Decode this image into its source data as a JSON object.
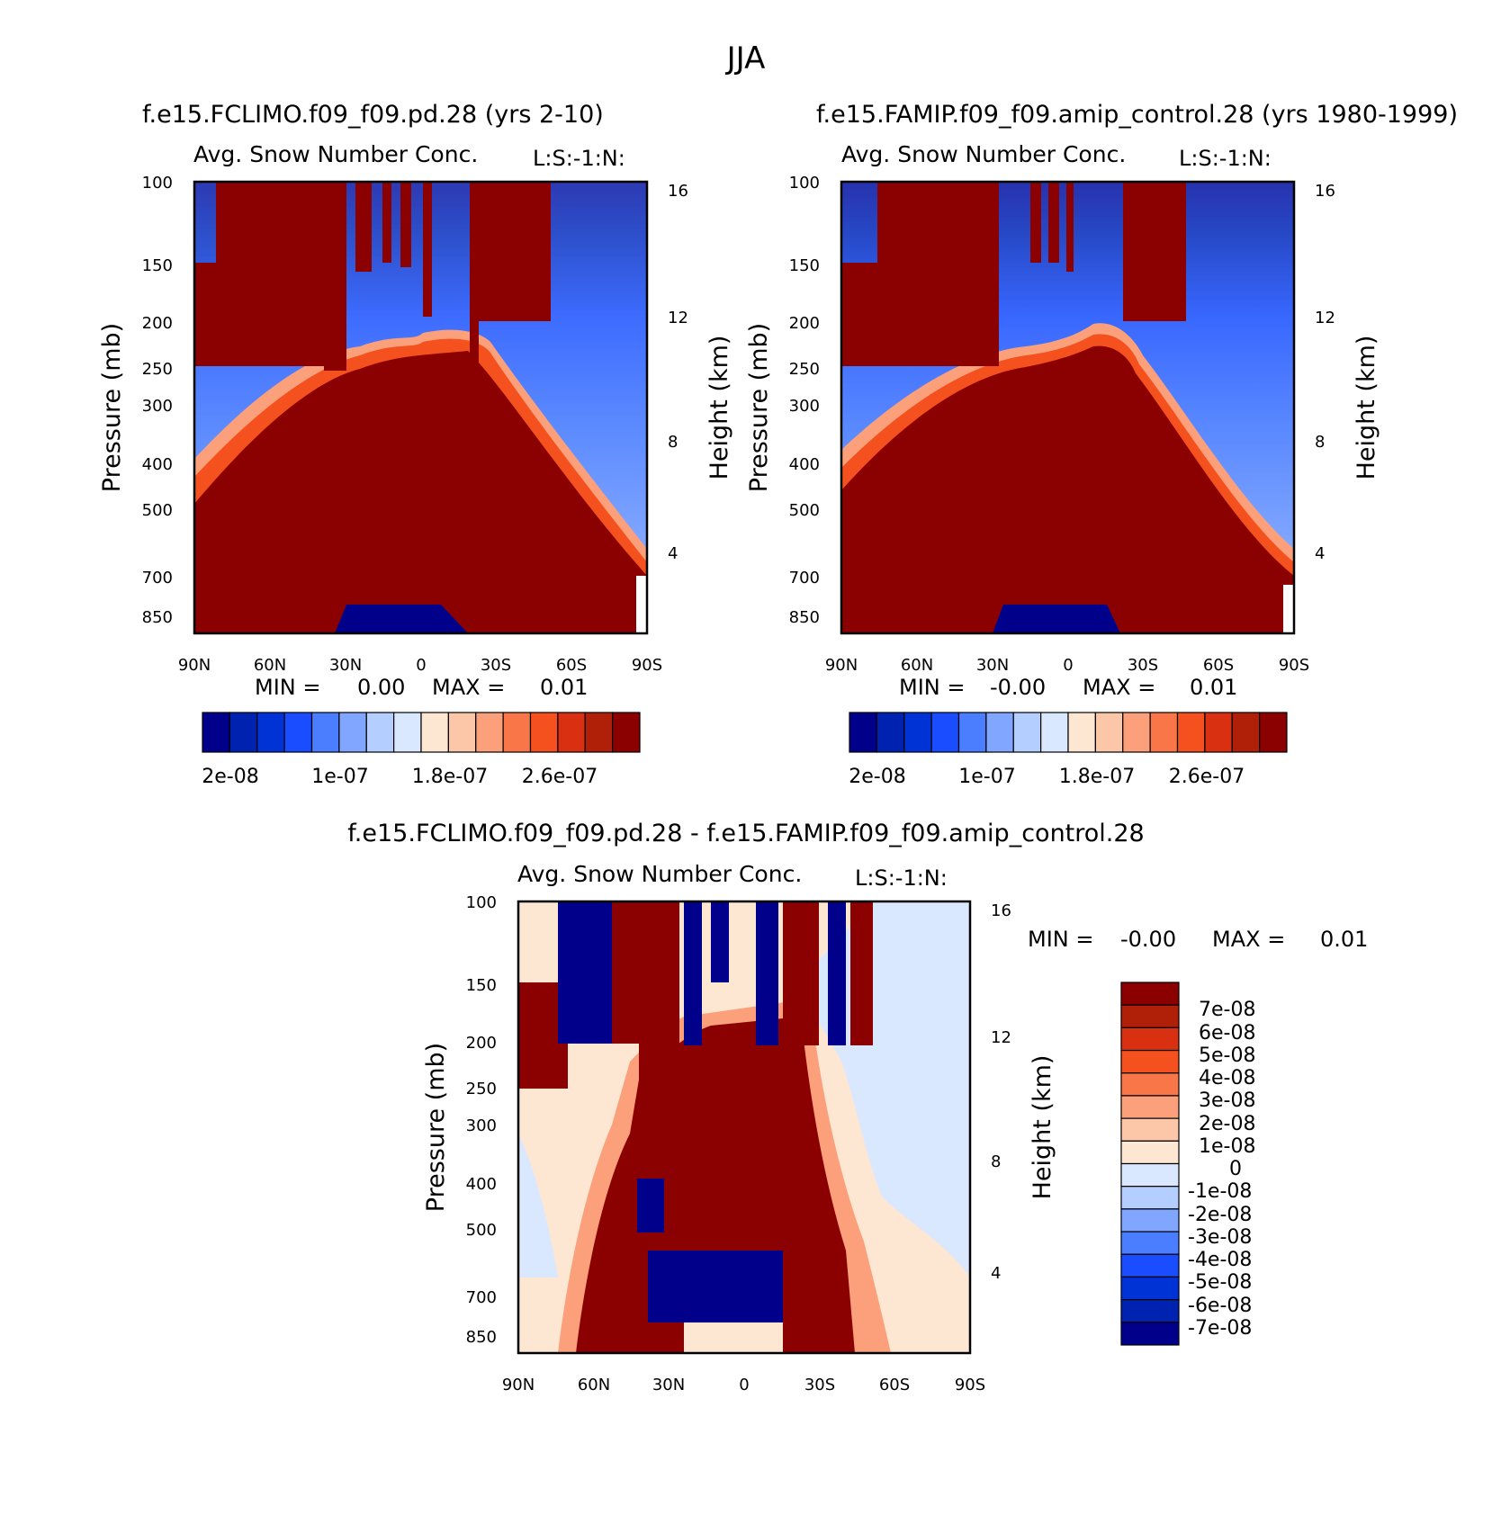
{
  "page_title": "JJA",
  "colors": {
    "abs_palette": [
      "#00008b",
      "#0022b0",
      "#0033d6",
      "#1a4dff",
      "#4a7dff",
      "#80a6ff",
      "#b3ceff",
      "#d9e8ff",
      "#fde6d2",
      "#fcc6a8",
      "#fba07a",
      "#f97648",
      "#f4511e",
      "#d83010",
      "#b01f08",
      "#8b0000"
    ],
    "diff_palette": [
      "#00008b",
      "#0022b0",
      "#0033d6",
      "#1a4dff",
      "#4a7dff",
      "#80a6ff",
      "#b3ceff",
      "#d9e8ff",
      "#fde6d2",
      "#fcc6a8",
      "#fba07a",
      "#f97648",
      "#f4511e",
      "#d83010",
      "#b01f08",
      "#8b0000"
    ]
  },
  "chart_data": [
    {
      "type": "heatmap",
      "panel": "top-left",
      "title": "f.e15.FCLIMO.f09_f09.pd.28 (yrs 2-10)",
      "subtitle": "Avg. Snow Number Conc.",
      "corner_label": "L:S:-1:N:",
      "xlabel": "",
      "ylabel": "Pressure (mb)",
      "y2label": "Height (km)",
      "xticks": [
        "90N",
        "60N",
        "30N",
        "0",
        "30S",
        "60S",
        "90S"
      ],
      "yticks": [
        "100",
        "150",
        "200",
        "250",
        "300",
        "400",
        "500",
        "700",
        "850"
      ],
      "y2ticks": [
        "16",
        "12",
        "8",
        "4"
      ],
      "min_label": "MIN =",
      "min_value": "0.00",
      "max_label": "MAX =",
      "max_value": "0.01",
      "colorbar_labels": [
        "2e-08",
        "1e-07",
        "1.8e-07",
        "2.6e-07"
      ]
    },
    {
      "type": "heatmap",
      "panel": "top-right",
      "title": "f.e15.FAMIP.f09_f09.amip_control.28 (yrs 1980-1999)",
      "subtitle": "Avg. Snow Number Conc.",
      "corner_label": "L:S:-1:N:",
      "xlabel": "",
      "ylabel": "Pressure (mb)",
      "y2label": "Height (km)",
      "xticks": [
        "90N",
        "60N",
        "30N",
        "0",
        "30S",
        "60S",
        "90S"
      ],
      "yticks": [
        "100",
        "150",
        "200",
        "250",
        "300",
        "400",
        "500",
        "700",
        "850"
      ],
      "y2ticks": [
        "16",
        "12",
        "8",
        "4"
      ],
      "min_label": "MIN =",
      "min_value": "-0.00",
      "max_label": "MAX =",
      "max_value": "0.01",
      "colorbar_labels": [
        "2e-08",
        "1e-07",
        "1.8e-07",
        "2.6e-07"
      ]
    },
    {
      "type": "heatmap",
      "panel": "bottom",
      "title": "f.e15.FCLIMO.f09_f09.pd.28 - f.e15.FAMIP.f09_f09.amip_control.28",
      "subtitle": "Avg. Snow Number Conc.",
      "corner_label": "L:S:-1:N:",
      "xlabel": "",
      "ylabel": "Pressure (mb)",
      "y2label": "Height (km)",
      "xticks": [
        "90N",
        "60N",
        "30N",
        "0",
        "30S",
        "60S",
        "90S"
      ],
      "yticks": [
        "100",
        "150",
        "200",
        "250",
        "300",
        "400",
        "500",
        "700",
        "850"
      ],
      "y2ticks": [
        "16",
        "12",
        "8",
        "4"
      ],
      "min_label": "MIN =",
      "min_value": "-0.00",
      "max_label": "MAX =",
      "max_value": "0.01",
      "colorbar_labels": [
        "7e-08",
        "6e-08",
        "5e-08",
        "4e-08",
        "3e-08",
        "2e-08",
        "1e-08",
        "0",
        "-1e-08",
        "-2e-08",
        "-3e-08",
        "-4e-08",
        "-5e-08",
        "-6e-08",
        "-7e-08"
      ]
    }
  ]
}
